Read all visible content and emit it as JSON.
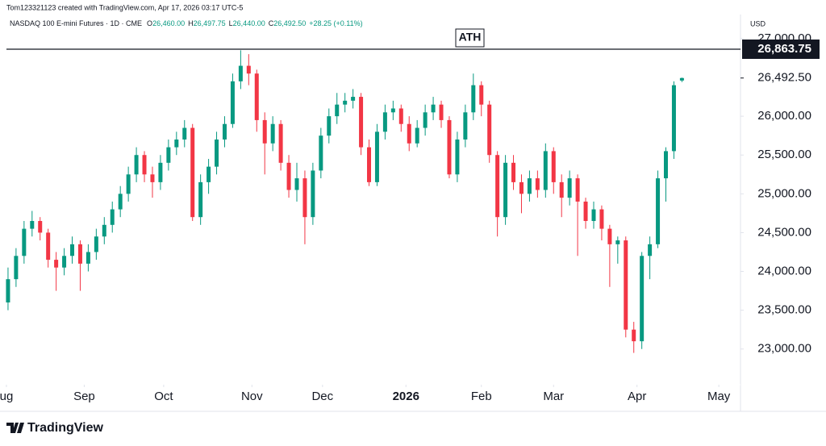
{
  "header": {
    "credit": "Tom123321123 created with TradingView.com, Apr 17, 2026 03:17 UTC-5",
    "symbol": "NASDAQ 100 E-mini Futures · 1D · CME",
    "ohlc": [
      {
        "key": "O",
        "value": "26,460.00"
      },
      {
        "key": "H",
        "value": "26,497.75"
      },
      {
        "key": "L",
        "value": "26,440.00"
      },
      {
        "key": "C",
        "value": "26,492.50"
      }
    ],
    "change": "+28.25 (+0.11%)",
    "currency": "USD"
  },
  "footer": {
    "brand": "TradingView"
  },
  "chart_data": {
    "type": "candlestick",
    "up_color": "#089981",
    "down_color": "#f23645",
    "xlim": [
      -1,
      91.3
    ],
    "ylim": [
      22540,
      27290
    ],
    "grid": false,
    "yticks": [
      {
        "value": 23000,
        "label": "23,000.00"
      },
      {
        "value": 23500,
        "label": "23,500.00"
      },
      {
        "value": 24000,
        "label": "24,000.00"
      },
      {
        "value": 24500,
        "label": "24,500.00"
      },
      {
        "value": 25000,
        "label": "25,000.00"
      },
      {
        "value": 25500,
        "label": "25,500.00"
      },
      {
        "value": 26000,
        "label": "26,000.00"
      },
      {
        "value": 27000,
        "label": "27,000.00"
      }
    ],
    "xticks": [
      {
        "value": -0.2,
        "label": "ug"
      },
      {
        "value": 9.5,
        "label": "Sep"
      },
      {
        "value": 19.4,
        "label": "Oct"
      },
      {
        "value": 30.4,
        "label": "Nov"
      },
      {
        "value": 39.2,
        "label": "Dec"
      },
      {
        "value": 49.6,
        "label": "2026",
        "bold": true
      },
      {
        "value": 59,
        "label": "Feb"
      },
      {
        "value": 68,
        "label": "Mar"
      },
      {
        "value": 78.4,
        "label": "Apr"
      },
      {
        "value": 88.6,
        "label": "May"
      }
    ],
    "last_price": {
      "value": 26492.5,
      "label": "26,492.50"
    },
    "ath": {
      "value": 26863.75,
      "label": "26,863.75",
      "annotation": "ATH"
    },
    "candles": [
      [
        23600,
        24050,
        23500,
        23900
      ],
      [
        23900,
        24300,
        23800,
        24200
      ],
      [
        24200,
        24650,
        24100,
        24550
      ],
      [
        24550,
        24780,
        24450,
        24650
      ],
      [
        24650,
        24700,
        24400,
        24500
      ],
      [
        24500,
        24550,
        24050,
        24150
      ],
      [
        24150,
        24250,
        23750,
        24050
      ],
      [
        24050,
        24300,
        23950,
        24200
      ],
      [
        24200,
        24450,
        24100,
        24350
      ],
      [
        24350,
        24400,
        23750,
        24100
      ],
      [
        24100,
        24350,
        24000,
        24250
      ],
      [
        24250,
        24550,
        24150,
        24450
      ],
      [
        24450,
        24700,
        24350,
        24600
      ],
      [
        24600,
        24900,
        24500,
        24800
      ],
      [
        24800,
        25100,
        24700,
        25000
      ],
      [
        25000,
        25350,
        24900,
        25250
      ],
      [
        25250,
        25600,
        25150,
        25500
      ],
      [
        25500,
        25550,
        25150,
        25250
      ],
      [
        25250,
        25350,
        24950,
        25150
      ],
      [
        25150,
        25500,
        25050,
        25400
      ],
      [
        25400,
        25700,
        25300,
        25600
      ],
      [
        25600,
        25800,
        25500,
        25700
      ],
      [
        25700,
        25950,
        25600,
        25850
      ],
      [
        25850,
        25900,
        24650,
        24700
      ],
      [
        24700,
        25250,
        24600,
        25150
      ],
      [
        25150,
        25450,
        25000,
        25350
      ],
      [
        25350,
        25800,
        25250,
        25700
      ],
      [
        25700,
        26000,
        25600,
        25900
      ],
      [
        25900,
        26550,
        25850,
        26450
      ],
      [
        26450,
        26850,
        26350,
        26650
      ],
      [
        26650,
        26800,
        26400,
        26550
      ],
      [
        26550,
        26600,
        25800,
        25950
      ],
      [
        25950,
        26050,
        25250,
        25650
      ],
      [
        25650,
        26000,
        25550,
        25900
      ],
      [
        25900,
        25950,
        25300,
        25400
      ],
      [
        25400,
        25500,
        24950,
        25050
      ],
      [
        25050,
        25400,
        24900,
        25200
      ],
      [
        25200,
        25300,
        24350,
        24700
      ],
      [
        24700,
        25400,
        24600,
        25300
      ],
      [
        25300,
        25850,
        25200,
        25750
      ],
      [
        25750,
        26100,
        25650,
        26000
      ],
      [
        26000,
        26300,
        25900,
        26150
      ],
      [
        26150,
        26300,
        26050,
        26200
      ],
      [
        26200,
        26350,
        26100,
        26250
      ],
      [
        26250,
        26300,
        25500,
        25600
      ],
      [
        25600,
        25700,
        25100,
        25150
      ],
      [
        25150,
        25900,
        25100,
        25800
      ],
      [
        25800,
        26150,
        25700,
        26050
      ],
      [
        26050,
        26200,
        25950,
        26100
      ],
      [
        26100,
        26150,
        25800,
        25900
      ],
      [
        25900,
        26000,
        25550,
        25650
      ],
      [
        25650,
        25950,
        25600,
        25850
      ],
      [
        25850,
        26150,
        25750,
        26050
      ],
      [
        26050,
        26250,
        25950,
        26150
      ],
      [
        26150,
        26200,
        25850,
        25950
      ],
      [
        25950,
        26000,
        25200,
        25250
      ],
      [
        25250,
        25800,
        25150,
        25700
      ],
      [
        25700,
        26150,
        25600,
        26050
      ],
      [
        26050,
        26550,
        25950,
        26400
      ],
      [
        26400,
        26450,
        26000,
        26150
      ],
      [
        26150,
        26200,
        25400,
        25500
      ],
      [
        25500,
        25550,
        24450,
        24700
      ],
      [
        24700,
        25500,
        24600,
        25400
      ],
      [
        25400,
        25500,
        25050,
        25150
      ],
      [
        25150,
        25250,
        24750,
        25000
      ],
      [
        25000,
        25300,
        24900,
        25200
      ],
      [
        25200,
        25300,
        24950,
        25050
      ],
      [
        25050,
        25650,
        24950,
        25550
      ],
      [
        25550,
        25600,
        25000,
        25150
      ],
      [
        25150,
        25250,
        24700,
        24950
      ],
      [
        24950,
        25300,
        24850,
        25200
      ],
      [
        25200,
        25250,
        24200,
        24900
      ],
      [
        24900,
        24950,
        24550,
        24650
      ],
      [
        24650,
        24900,
        24550,
        24800
      ],
      [
        24800,
        24850,
        24400,
        24550
      ],
      [
        24550,
        24600,
        23800,
        24350
      ],
      [
        24350,
        24450,
        24100,
        24400
      ],
      [
        24400,
        24450,
        23150,
        23250
      ],
      [
        23250,
        23350,
        22950,
        23100
      ],
      [
        23100,
        24250,
        23000,
        24200
      ],
      [
        24200,
        24450,
        23900,
        24350
      ],
      [
        24350,
        25300,
        24300,
        25200
      ],
      [
        25200,
        25600,
        24900,
        25550
      ],
      [
        25550,
        26450,
        25450,
        26400
      ],
      [
        26460,
        26497.75,
        26440,
        26492.5
      ]
    ]
  }
}
